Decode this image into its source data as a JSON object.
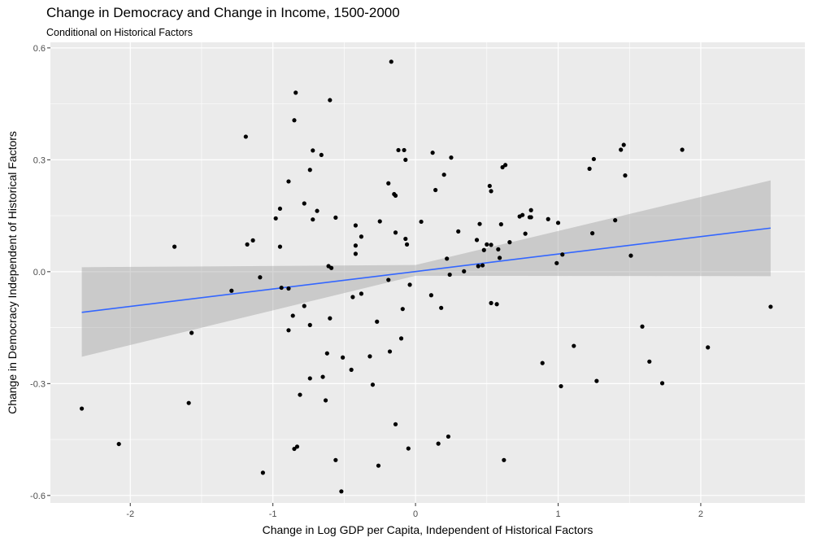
{
  "chart_data": {
    "type": "scatter",
    "title": "Change in Democracy and Change in Income, 1500-2000",
    "subtitle": "Conditional on Historical Factors",
    "xlabel": "Change in Log GDP per Capita, Independent of Historical Factors",
    "ylabel": "Change in Democracy Independent of Historical Factors",
    "xlim": [
      -2.56,
      2.73
    ],
    "ylim": [
      -0.62,
      0.615
    ],
    "x_ticks": [
      -2,
      -1,
      0,
      1,
      2
    ],
    "x_tick_labels": [
      "-2",
      "-1",
      "0",
      "1",
      "2"
    ],
    "y_ticks": [
      -0.6,
      -0.3,
      0.0,
      0.3,
      0.6
    ],
    "y_tick_labels": [
      "-0.6",
      "-0.3",
      "0.0",
      "0.3",
      "0.6"
    ],
    "grid": true,
    "background_color": "#ebebeb",
    "grid_color": "#ffffff",
    "point_color": "#000000",
    "fit_line_color": "#3366ff",
    "ribbon_color": "#999999",
    "points": [
      [
        -2.34,
        -0.367
      ],
      [
        -2.08,
        -0.462
      ],
      [
        -1.69,
        0.067
      ],
      [
        -1.59,
        -0.352
      ],
      [
        -1.57,
        -0.164
      ],
      [
        -1.29,
        -0.051
      ],
      [
        -1.19,
        0.362
      ],
      [
        -1.18,
        0.073
      ],
      [
        -1.14,
        0.084
      ],
      [
        -1.09,
        -0.015
      ],
      [
        -1.07,
        -0.539
      ],
      [
        -0.98,
        0.143
      ],
      [
        -0.95,
        0.169
      ],
      [
        -0.95,
        0.067
      ],
      [
        -0.94,
        -0.043
      ],
      [
        -0.89,
        0.242
      ],
      [
        -0.89,
        -0.157
      ],
      [
        -0.89,
        -0.045
      ],
      [
        -0.86,
        -0.118
      ],
      [
        -0.85,
        0.406
      ],
      [
        -0.85,
        -0.475
      ],
      [
        -0.84,
        0.48
      ],
      [
        -0.83,
        -0.469
      ],
      [
        -0.81,
        -0.33
      ],
      [
        -0.78,
        -0.092
      ],
      [
        -0.78,
        0.183
      ],
      [
        -0.74,
        -0.286
      ],
      [
        -0.74,
        -0.143
      ],
      [
        -0.74,
        0.273
      ],
      [
        -0.72,
        0.325
      ],
      [
        -0.72,
        0.14
      ],
      [
        -0.69,
        0.163
      ],
      [
        -0.66,
        0.313
      ],
      [
        -0.65,
        -0.282
      ],
      [
        -0.63,
        -0.345
      ],
      [
        -0.62,
        -0.219
      ],
      [
        -0.61,
        0.015
      ],
      [
        -0.6,
        -0.125
      ],
      [
        -0.6,
        0.46
      ],
      [
        -0.59,
        0.01
      ],
      [
        -0.56,
        0.145
      ],
      [
        -0.56,
        -0.505
      ],
      [
        -0.52,
        -0.589
      ],
      [
        -0.51,
        -0.23
      ],
      [
        -0.45,
        -0.263
      ],
      [
        -0.44,
        -0.068
      ],
      [
        -0.42,
        0.124
      ],
      [
        -0.42,
        0.07
      ],
      [
        -0.42,
        0.048
      ],
      [
        -0.38,
        0.094
      ],
      [
        -0.38,
        -0.059
      ],
      [
        -0.32,
        -0.227
      ],
      [
        -0.3,
        -0.303
      ],
      [
        -0.27,
        -0.134
      ],
      [
        -0.26,
        -0.52
      ],
      [
        -0.25,
        0.135
      ],
      [
        -0.19,
        -0.022
      ],
      [
        -0.19,
        0.237
      ],
      [
        -0.18,
        -0.214
      ],
      [
        -0.17,
        0.563
      ],
      [
        -0.15,
        0.208
      ],
      [
        -0.14,
        0.204
      ],
      [
        -0.14,
        -0.409
      ],
      [
        -0.14,
        0.105
      ],
      [
        -0.12,
        0.326
      ],
      [
        -0.1,
        -0.179
      ],
      [
        -0.09,
        -0.1
      ],
      [
        -0.08,
        0.326
      ],
      [
        -0.07,
        0.3
      ],
      [
        -0.07,
        0.088
      ],
      [
        -0.06,
        0.073
      ],
      [
        -0.05,
        -0.474
      ],
      [
        -0.04,
        -0.035
      ],
      [
        0.04,
        0.134
      ],
      [
        0.11,
        -0.063
      ],
      [
        0.12,
        0.319
      ],
      [
        0.14,
        0.219
      ],
      [
        0.16,
        -0.461
      ],
      [
        0.18,
        -0.097
      ],
      [
        0.2,
        0.26
      ],
      [
        0.22,
        0.035
      ],
      [
        0.23,
        -0.442
      ],
      [
        0.24,
        -0.008
      ],
      [
        0.25,
        0.306
      ],
      [
        0.3,
        0.108
      ],
      [
        0.34,
        0.001
      ],
      [
        0.43,
        0.085
      ],
      [
        0.44,
        0.015
      ],
      [
        0.45,
        0.128
      ],
      [
        0.47,
        0.017
      ],
      [
        0.48,
        0.058
      ],
      [
        0.5,
        0.073
      ],
      [
        0.52,
        0.23
      ],
      [
        0.53,
        0.216
      ],
      [
        0.53,
        0.072
      ],
      [
        0.53,
        -0.084
      ],
      [
        0.57,
        -0.087
      ],
      [
        0.58,
        0.06
      ],
      [
        0.59,
        0.037
      ],
      [
        0.6,
        0.127
      ],
      [
        0.61,
        0.28
      ],
      [
        0.62,
        -0.505
      ],
      [
        0.63,
        0.286
      ],
      [
        0.66,
        0.079
      ],
      [
        0.73,
        0.148
      ],
      [
        0.75,
        0.152
      ],
      [
        0.77,
        0.102
      ],
      [
        0.8,
        0.146
      ],
      [
        0.81,
        0.146
      ],
      [
        0.81,
        0.165
      ],
      [
        0.89,
        -0.245
      ],
      [
        0.93,
        0.141
      ],
      [
        0.99,
        0.023
      ],
      [
        1.0,
        0.131
      ],
      [
        1.02,
        -0.307
      ],
      [
        1.03,
        0.046
      ],
      [
        1.11,
        -0.199
      ],
      [
        1.22,
        0.276
      ],
      [
        1.24,
        0.103
      ],
      [
        1.25,
        0.302
      ],
      [
        1.27,
        -0.293
      ],
      [
        1.4,
        0.138
      ],
      [
        1.44,
        0.327
      ],
      [
        1.46,
        0.34
      ],
      [
        1.47,
        0.258
      ],
      [
        1.51,
        0.043
      ],
      [
        1.59,
        -0.147
      ],
      [
        1.64,
        -0.241
      ],
      [
        1.73,
        -0.299
      ],
      [
        1.87,
        0.327
      ],
      [
        2.05,
        -0.203
      ],
      [
        2.49,
        -0.094
      ]
    ],
    "fit": {
      "method": "lm",
      "x": [
        -2.34,
        2.49
      ],
      "y": [
        -0.109,
        0.117
      ]
    },
    "ribbon": {
      "x": [
        -2.34,
        0.0,
        2.49
      ],
      "lower": [
        -0.228,
        -0.011,
        -0.012
      ],
      "upper": [
        0.012,
        0.018,
        0.245
      ]
    }
  }
}
